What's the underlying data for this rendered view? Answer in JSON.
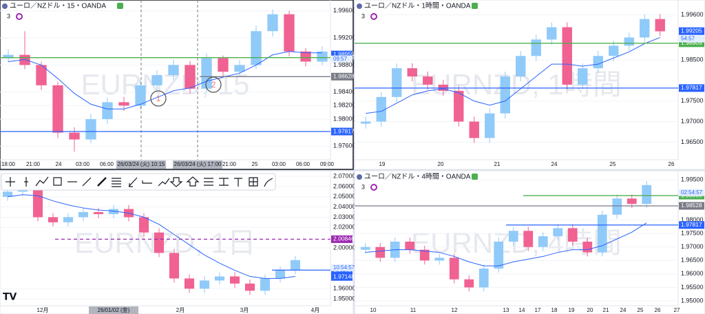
{
  "panels": [
    {
      "title": "ユーロ／NZドル・15・OANDA",
      "badge": "3",
      "watermark": "EURNZD, 15",
      "countdown": "09:57",
      "ylim": [
        1.974,
        1.9974
      ],
      "yticks": [
        {
          "value": 1.976,
          "label": "1.97600"
        },
        {
          "value": 1.98,
          "label": "1.98000"
        },
        {
          "value": 1.982,
          "label": "1.98200"
        },
        {
          "value": 1.984,
          "label": "1.98400"
        },
        {
          "value": 1.988,
          "label": "1.98800"
        },
        {
          "value": 1.992,
          "label": "1.99200"
        },
        {
          "value": 1.996,
          "label": "1.99600"
        }
      ],
      "time_labels": [
        "18:00",
        "21:00",
        "24",
        "03:00",
        "06:00",
        "26/03/24 (火) 10:15",
        "26/03/24 (火) 17:00",
        "21:00",
        "25",
        "03:00",
        "06:00",
        "09:00"
      ],
      "hlines": [
        {
          "value": 1.97817,
          "color": "#2962ff",
          "style": "solid"
        },
        {
          "value": 1.98909,
          "color": "#4caf50",
          "style": "solid"
        },
        {
          "value": 1.98628,
          "color": "#787b86",
          "style": "solid"
        },
        {
          "value": 1.98955,
          "color": "#2962ff",
          "style": "label"
        }
      ],
      "annotations": [
        {
          "text": "1"
        },
        {
          "text": "2"
        }
      ],
      "up_color": "#90caf9",
      "down_color": "#f06292",
      "ma_color": "#2962ff",
      "open": [
        1.989,
        1.9895,
        1.988,
        1.985,
        1.978,
        1.977,
        1.98,
        1.9825,
        1.982,
        1.985,
        1.9865,
        1.988,
        1.9845,
        1.989,
        1.987,
        1.988,
        1.993,
        1.9955,
        1.99,
        1.9885
      ],
      "high": [
        1.9903,
        1.993,
        1.9885,
        1.9855,
        1.9788,
        1.9808,
        1.9832,
        1.9833,
        1.9858,
        1.9872,
        1.9888,
        1.9886,
        1.9897,
        1.9894,
        1.9887,
        1.9938,
        1.9962,
        1.996,
        1.9905,
        1.9908
      ],
      "low": [
        1.9884,
        1.9874,
        1.9843,
        1.9772,
        1.9752,
        1.9764,
        1.9793,
        1.9812,
        1.9814,
        1.9843,
        1.9858,
        1.9838,
        1.984,
        1.9862,
        1.9864,
        1.9874,
        1.9922,
        1.9893,
        1.9878,
        1.988
      ],
      "close": [
        1.9895,
        1.988,
        1.985,
        1.978,
        1.977,
        1.98,
        1.9825,
        1.982,
        1.985,
        1.9865,
        1.988,
        1.9845,
        1.989,
        1.987,
        1.988,
        1.993,
        1.9955,
        1.99,
        1.9885,
        1.99
      ],
      "ma": [
        1.9885,
        1.9888,
        1.988,
        1.986,
        1.9838,
        1.9822,
        1.9815,
        1.9815,
        1.9822,
        1.9832,
        1.9842,
        1.9846,
        1.9856,
        1.9862,
        1.9868,
        1.988,
        1.9895,
        1.99,
        1.9898,
        1.9898
      ]
    },
    {
      "title": "ユーロ／NZドル・1時間・OANDA",
      "badge": "3",
      "watermark": "EURNZD, 1時間",
      "countdown": "54:57",
      "ylim": [
        1.9607,
        1.9993
      ],
      "yticks": [
        {
          "value": 1.965,
          "label": "1.96500"
        },
        {
          "value": 1.97,
          "label": "1.97000"
        },
        {
          "value": 1.975,
          "label": "1.97500"
        },
        {
          "value": 1.985,
          "label": "1.98500"
        },
        {
          "value": 1.996,
          "label": "1.99600"
        }
      ],
      "time_labels": [
        "19",
        "20",
        "21",
        "24",
        "25",
        "26"
      ],
      "hlines": [
        {
          "value": 1.97817,
          "color": "#2962ff",
          "style": "solid"
        },
        {
          "value": 1.98909,
          "color": "#4caf50",
          "style": "solid"
        },
        {
          "value": 1.99205,
          "color": "#2962ff",
          "style": "label"
        }
      ],
      "annotations": [],
      "up_color": "#90caf9",
      "down_color": "#f06292",
      "ma_color": "#2962ff",
      "open": [
        1.9695,
        1.97,
        1.976,
        1.983,
        1.981,
        1.979,
        1.9775,
        1.97,
        1.966,
        1.972,
        1.981,
        1.986,
        1.99,
        1.993,
        1.979,
        1.983,
        1.986,
        1.9885,
        1.9905,
        1.995
      ],
      "high": [
        1.9712,
        1.9772,
        1.9842,
        1.9842,
        1.9822,
        1.9802,
        1.9787,
        1.9712,
        1.9732,
        1.9822,
        1.9872,
        1.9912,
        1.9942,
        1.9942,
        1.9842,
        1.9872,
        1.9897,
        1.9917,
        1.9962,
        1.9962
      ],
      "low": [
        1.9683,
        1.9688,
        1.9748,
        1.9798,
        1.9778,
        1.9763,
        1.9688,
        1.9648,
        1.9648,
        1.9708,
        1.9798,
        1.9848,
        1.9888,
        1.9778,
        1.9778,
        1.9818,
        1.9848,
        1.9873,
        1.9893,
        1.9908
      ],
      "close": [
        1.97,
        1.976,
        1.983,
        1.981,
        1.979,
        1.9775,
        1.97,
        1.966,
        1.972,
        1.981,
        1.986,
        1.99,
        1.993,
        1.979,
        1.983,
        1.986,
        1.9885,
        1.9905,
        1.995,
        1.992
      ],
      "ma": [
        1.972,
        1.9725,
        1.9745,
        1.9765,
        1.9775,
        1.978,
        1.977,
        1.975,
        1.974,
        1.975,
        1.978,
        1.981,
        1.984,
        1.984,
        1.9835,
        1.984,
        1.9855,
        1.987,
        1.989,
        1.9905
      ]
    },
    {
      "title": "",
      "badge": "",
      "watermark": "EURNZD, 1日",
      "countdown": "10:54:57",
      "ylim": [
        1.9433,
        2.0741
      ],
      "yticks": [
        {
          "value": 1.95,
          "label": "1.95000"
        },
        {
          "value": 1.96,
          "label": "1.96000"
        },
        {
          "value": 2.0,
          "label": "2.00000"
        },
        {
          "value": 2.02,
          "label": "2.02000"
        },
        {
          "value": 2.03,
          "label": "2.03000"
        },
        {
          "value": 2.04,
          "label": "2.04000"
        },
        {
          "value": 2.05,
          "label": "2.05000"
        },
        {
          "value": 2.06,
          "label": "2.06000"
        },
        {
          "value": 2.07,
          "label": "2.07000"
        }
      ],
      "time_labels": [
        "12月",
        "26/01/02 (金)",
        "2月",
        "3月",
        "4月"
      ],
      "hlines": [
        {
          "value": 2.00846,
          "color": "#9c27b0",
          "style": "dashed"
        },
        {
          "value": 1.97817,
          "color": "#2962ff",
          "style": "solid"
        },
        {
          "value": 1.97148,
          "color": "#2962ff",
          "style": "label"
        }
      ],
      "annotations": [],
      "up_color": "#90caf9",
      "down_color": "#f06292",
      "ma_color": "#2962ff",
      "open": [
        2.05,
        2.055,
        2.06,
        2.03,
        2.025,
        2.03,
        2.035,
        2.033,
        2.038,
        2.03,
        2.015,
        1.995,
        1.97,
        1.96,
        1.968,
        1.972,
        1.965,
        1.958,
        1.97,
        1.978
      ],
      "high": [
        2.059,
        2.064,
        2.064,
        2.034,
        2.034,
        2.039,
        2.039,
        2.042,
        2.042,
        2.034,
        2.019,
        1.999,
        1.974,
        1.972,
        1.976,
        1.976,
        1.969,
        1.974,
        1.982,
        1.992
      ],
      "low": [
        2.046,
        2.051,
        2.026,
        2.021,
        2.021,
        2.026,
        2.029,
        2.029,
        2.026,
        2.011,
        1.991,
        1.966,
        1.956,
        1.956,
        1.964,
        1.961,
        1.954,
        1.954,
        1.966,
        1.974
      ],
      "close": [
        2.055,
        2.06,
        2.03,
        2.025,
        2.03,
        2.035,
        2.033,
        2.038,
        2.03,
        2.015,
        1.995,
        1.97,
        1.96,
        1.968,
        1.972,
        1.965,
        1.958,
        1.97,
        1.978,
        1.988
      ],
      "ma": [
        2.05,
        2.052,
        2.051,
        2.046,
        2.042,
        2.039,
        2.037,
        2.036,
        2.034,
        2.03,
        2.023,
        2.013,
        2.003,
        1.993,
        1.985,
        1.978,
        1.972,
        1.97,
        1.97,
        1.972
      ]
    },
    {
      "title": "ユーロ／NZドル・4時間・OANDA",
      "badge": "3",
      "watermark": "EURNZD, 4時間",
      "countdown": "02:54:57",
      "ylim": [
        1.9482,
        1.9978
      ],
      "yticks": [
        {
          "value": 1.95,
          "label": "1.95000"
        },
        {
          "value": 1.955,
          "label": "1.95500"
        },
        {
          "value": 1.96,
          "label": "1.96000"
        },
        {
          "value": 1.965,
          "label": "1.96500"
        },
        {
          "value": 1.97,
          "label": "1.97000"
        },
        {
          "value": 1.975,
          "label": "1.97500"
        },
        {
          "value": 1.98,
          "label": "1.98000"
        },
        {
          "value": 1.995,
          "label": "1.99500"
        }
      ],
      "time_labels": [
        "10",
        "11",
        "12",
        "13",
        "14",
        "17",
        "18",
        "19",
        "20",
        "21",
        "24",
        "25",
        "26",
        "27"
      ],
      "hlines": [
        {
          "value": 1.98909,
          "color": "#4caf50",
          "style": "solid"
        },
        {
          "value": 1.98528,
          "color": "#787b86",
          "style": "solid"
        },
        {
          "value": 1.97817,
          "color": "#2962ff",
          "style": "solid"
        }
      ],
      "annotations": [],
      "up_color": "#90caf9",
      "down_color": "#f06292",
      "ma_color": "#2962ff",
      "open": [
        1.969,
        1.97,
        1.966,
        1.972,
        1.969,
        1.965,
        1.966,
        1.958,
        1.955,
        1.962,
        1.972,
        1.976,
        1.97,
        1.974,
        1.977,
        1.972,
        1.968,
        1.982,
        1.988,
        1.986
      ],
      "high": [
        1.9715,
        1.9715,
        1.9735,
        1.9735,
        1.9705,
        1.9675,
        1.9675,
        1.9595,
        1.9635,
        1.9735,
        1.9775,
        1.9775,
        1.9755,
        1.9785,
        1.9785,
        1.9735,
        1.9835,
        1.9895,
        1.9895,
        1.9945
      ],
      "low": [
        1.9675,
        1.9645,
        1.9645,
        1.9675,
        1.9635,
        1.9635,
        1.9565,
        1.9535,
        1.9535,
        1.9605,
        1.9705,
        1.9685,
        1.9685,
        1.9725,
        1.9705,
        1.9665,
        1.9665,
        1.9805,
        1.9845,
        1.9845
      ],
      "close": [
        1.97,
        1.966,
        1.972,
        1.969,
        1.965,
        1.966,
        1.958,
        1.955,
        1.962,
        1.972,
        1.976,
        1.97,
        1.974,
        1.977,
        1.972,
        1.968,
        1.982,
        1.988,
        1.986,
        1.993
      ],
      "ma": [
        1.968,
        1.9685,
        1.969,
        1.969,
        1.9685,
        1.968,
        1.9665,
        1.9645,
        1.963,
        1.963,
        1.9645,
        1.9655,
        1.9665,
        1.968,
        1.969,
        1.969,
        1.9705,
        1.973,
        1.9755,
        1.979
      ]
    }
  ]
}
